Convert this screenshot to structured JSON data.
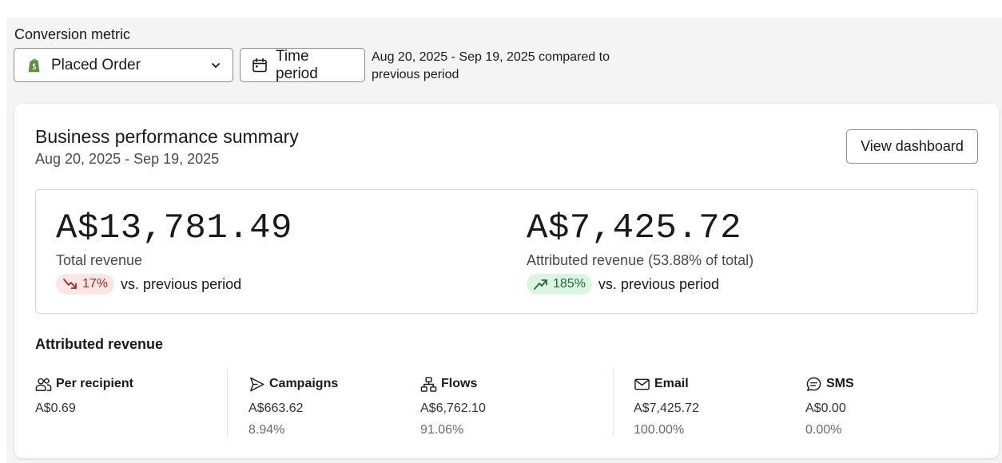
{
  "filters": {
    "metric_label": "Conversion metric",
    "metric_value": "Placed Order",
    "time_button": "Time period",
    "range_text": "Aug 20, 2025 - Sep 19, 2025 compared to previous period"
  },
  "card": {
    "title": "Business performance summary",
    "subtitle": "Aug 20, 2025 - Sep 19, 2025",
    "view_button": "View dashboard"
  },
  "stats": {
    "total": {
      "value": "A$13,781.49",
      "label": "Total revenue",
      "change": "17%",
      "direction": "down",
      "compare": "vs. previous period"
    },
    "attributed": {
      "value": "A$7,425.72",
      "label": "Attributed revenue (53.88% of total)",
      "change": "185%",
      "direction": "up",
      "compare": "vs. previous period"
    }
  },
  "attributed_section": {
    "title": "Attributed revenue",
    "columns": [
      {
        "label": "Per recipient",
        "icon": "users-icon",
        "value": "A$0.69",
        "percent": ""
      },
      {
        "label": "Campaigns",
        "icon": "send-icon",
        "value": "A$663.62",
        "percent": "8.94%"
      },
      {
        "label": "Flows",
        "icon": "flow-icon",
        "value": "A$6,762.10",
        "percent": "91.06%"
      },
      {
        "label": "Email",
        "icon": "mail-icon",
        "value": "A$7,425.72",
        "percent": "100.00%"
      },
      {
        "label": "SMS",
        "icon": "sms-icon",
        "value": "A$0.00",
        "percent": "0.00%"
      }
    ]
  },
  "colors": {
    "page_bg": "#f4f4f5",
    "down_badge_bg": "#fbe6e6",
    "down_badge_fg": "#b3261e",
    "up_badge_bg": "#dcf5e3",
    "up_badge_fg": "#1d6b34",
    "shopify_green": "#5e8e3e"
  }
}
